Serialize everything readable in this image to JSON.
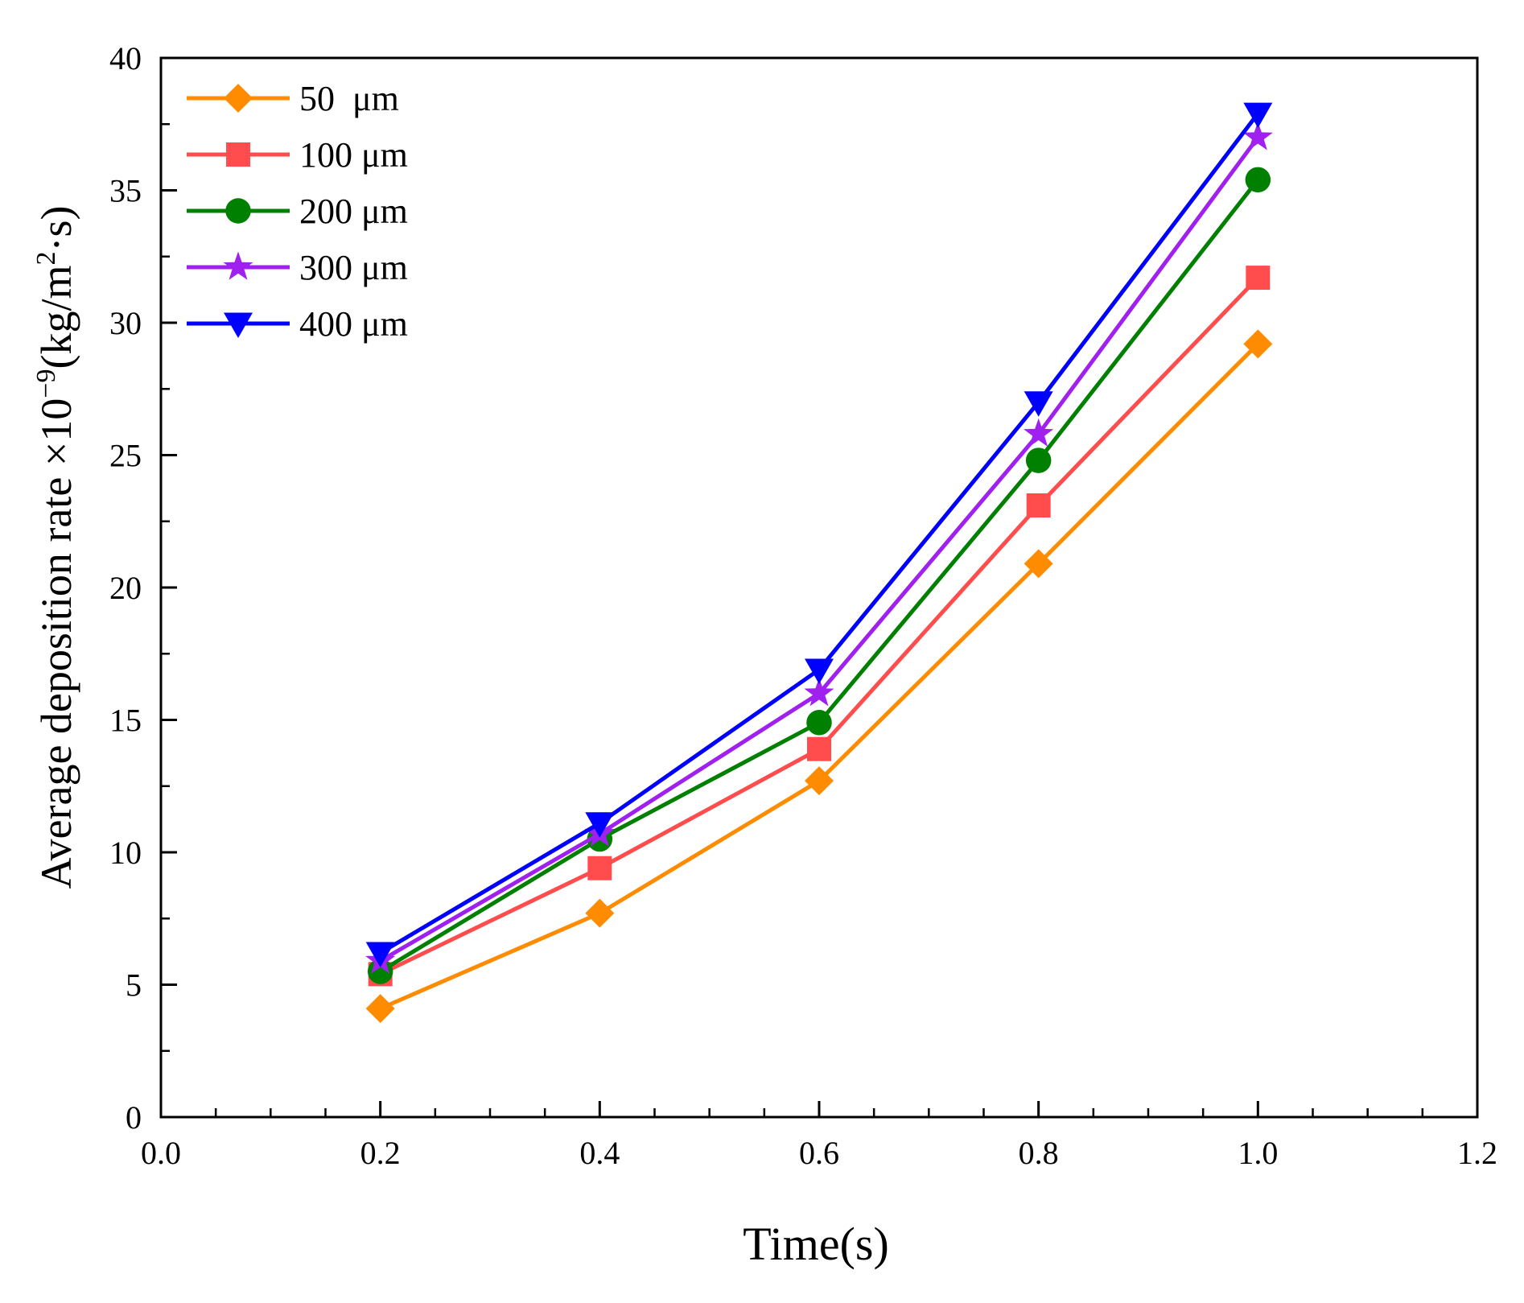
{
  "chart_data": {
    "type": "line",
    "title": "",
    "xlabel": "Time(s)",
    "ylabel_main": "Average deposition rate ×10",
    "ylabel_exp": "−9",
    "ylabel_unit": "(kg/m",
    "ylabel_unit_exp": "2",
    "ylabel_unit_tail": "·s)",
    "xlim": [
      0.0,
      1.2
    ],
    "ylim": [
      0,
      40
    ],
    "xticks": [
      0.0,
      0.2,
      0.4,
      0.6,
      0.8,
      1.0,
      1.2
    ],
    "xtick_labels": [
      "0.0",
      "0.2",
      "0.4",
      "0.6",
      "0.8",
      "1.0",
      "1.2"
    ],
    "yticks": [
      0,
      5,
      10,
      15,
      20,
      25,
      30,
      35,
      40
    ],
    "ytick_labels": [
      "0",
      "5",
      "10",
      "15",
      "20",
      "25",
      "30",
      "35",
      "40"
    ],
    "grid": false,
    "legend_position": "top-left",
    "x": [
      0.2,
      0.4,
      0.6,
      0.8,
      1.0
    ],
    "series": [
      {
        "name": "50  μm",
        "color": "#FF8C00",
        "marker": "diamond",
        "values": [
          4.1,
          7.7,
          12.7,
          20.9,
          29.2
        ]
      },
      {
        "name": "100 μm",
        "color": "#FF4D4D",
        "marker": "square",
        "values": [
          5.4,
          9.4,
          13.9,
          23.1,
          31.7
        ]
      },
      {
        "name": "200 μm",
        "color": "#008000",
        "marker": "circle",
        "values": [
          5.5,
          10.5,
          14.9,
          24.8,
          35.4
        ]
      },
      {
        "name": "300 μm",
        "color": "#A020F0",
        "marker": "star",
        "values": [
          5.9,
          10.7,
          16.0,
          25.8,
          37.0
        ]
      },
      {
        "name": "400 μm",
        "color": "#0000FF",
        "marker": "triangle-down",
        "values": [
          6.2,
          11.1,
          16.9,
          27.0,
          37.9
        ]
      }
    ]
  }
}
